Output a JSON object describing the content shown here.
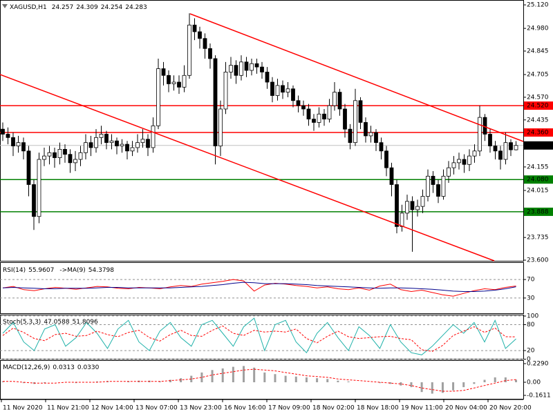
{
  "chart_data": [
    {
      "type": "candlestick",
      "symbol": "XAGUSD,H1",
      "open": [
        24.38,
        24.35,
        24.33,
        24.28,
        24.3,
        24.25,
        24.05,
        23.86,
        24.2,
        24.22,
        24.24,
        24.21,
        24.26,
        24.23,
        24.18,
        24.2,
        24.24,
        24.3,
        24.27,
        24.33,
        24.35,
        24.3,
        24.31,
        24.28,
        24.29,
        24.25,
        24.27,
        24.3,
        24.32,
        24.27,
        24.4,
        24.74,
        24.7,
        24.65,
        24.66,
        24.63,
        24.7,
        25.0,
        24.96,
        24.92,
        24.86,
        24.8,
        24.28,
        24.5,
        24.72,
        24.76,
        24.7,
        24.78,
        24.73,
        24.77,
        24.75,
        24.72,
        24.66,
        24.58,
        24.64,
        24.6,
        24.62,
        24.55,
        24.52,
        24.5,
        24.44,
        24.42,
        24.47,
        24.44,
        24.52,
        24.6,
        24.5,
        24.38,
        24.3,
        24.55,
        24.42,
        24.34,
        24.36,
        24.3,
        24.25,
        24.15,
        24.05,
        23.8,
        23.88,
        23.95,
        23.9,
        23.92,
        23.98,
        24.1,
        24.05,
        23.98,
        24.1,
        24.15,
        24.18,
        24.2,
        24.17,
        24.22,
        24.25,
        24.45,
        24.35,
        24.28,
        24.25,
        24.2,
        24.3,
        24.257
      ],
      "high": [
        24.42,
        24.39,
        24.36,
        24.34,
        24.33,
        24.28,
        24.08,
        24.24,
        24.27,
        24.28,
        24.27,
        24.3,
        24.29,
        24.26,
        24.25,
        24.28,
        24.35,
        24.34,
        24.38,
        24.4,
        24.37,
        24.35,
        24.33,
        24.32,
        24.31,
        24.31,
        24.35,
        24.38,
        24.35,
        24.45,
        24.8,
        24.78,
        24.73,
        24.7,
        24.7,
        24.76,
        25.07,
        25.04,
        24.99,
        24.95,
        24.89,
        24.82,
        24.55,
        24.78,
        24.81,
        24.79,
        24.82,
        24.81,
        24.8,
        24.8,
        24.78,
        24.75,
        24.69,
        24.68,
        24.67,
        24.66,
        24.64,
        24.58,
        24.55,
        24.53,
        24.47,
        24.51,
        24.5,
        24.56,
        24.66,
        24.62,
        24.53,
        24.41,
        24.62,
        24.57,
        24.45,
        24.4,
        24.38,
        24.33,
        24.28,
        24.18,
        24.08,
        23.93,
        23.99,
        23.98,
        23.96,
        24.02,
        24.14,
        24.13,
        24.08,
        24.14,
        24.19,
        24.22,
        24.24,
        24.23,
        24.26,
        24.29,
        24.52,
        24.47,
        24.38,
        24.31,
        24.28,
        24.36,
        24.32,
        24.309
      ],
      "low": [
        24.31,
        24.29,
        24.22,
        24.24,
        24.2,
        23.98,
        23.78,
        23.82,
        24.16,
        24.17,
        24.15,
        24.17,
        24.18,
        24.12,
        24.13,
        24.16,
        24.2,
        24.22,
        24.24,
        24.29,
        24.26,
        24.26,
        24.23,
        24.24,
        24.2,
        24.22,
        24.24,
        24.27,
        24.22,
        24.24,
        24.38,
        24.64,
        24.6,
        24.61,
        24.59,
        24.6,
        24.68,
        24.91,
        24.86,
        24.8,
        24.74,
        24.17,
        24.22,
        24.47,
        24.68,
        24.65,
        24.67,
        24.69,
        24.7,
        24.71,
        24.68,
        24.62,
        24.54,
        24.55,
        24.56,
        24.57,
        24.51,
        24.48,
        24.46,
        24.4,
        24.37,
        24.39,
        24.4,
        24.42,
        24.49,
        24.46,
        24.33,
        24.26,
        24.28,
        24.38,
        24.3,
        24.3,
        24.25,
        24.2,
        24.1,
        23.98,
        23.76,
        23.77,
        23.84,
        23.65,
        23.86,
        23.88,
        23.95,
        24.0,
        23.94,
        23.96,
        24.06,
        24.11,
        24.14,
        24.12,
        24.13,
        24.18,
        24.22,
        24.31,
        24.24,
        24.2,
        24.14,
        24.17,
        24.22,
        24.254
      ],
      "close": [
        24.35,
        24.33,
        24.28,
        24.3,
        24.25,
        24.05,
        23.86,
        24.2,
        24.22,
        24.24,
        24.21,
        24.26,
        24.23,
        24.18,
        24.2,
        24.24,
        24.3,
        24.27,
        24.33,
        24.35,
        24.3,
        24.31,
        24.28,
        24.29,
        24.25,
        24.27,
        24.3,
        24.32,
        24.27,
        24.4,
        24.74,
        24.7,
        24.65,
        24.66,
        24.63,
        24.7,
        25.0,
        24.96,
        24.92,
        24.86,
        24.8,
        24.28,
        24.5,
        24.72,
        24.76,
        24.7,
        24.78,
        24.73,
        24.77,
        24.75,
        24.72,
        24.66,
        24.58,
        24.64,
        24.6,
        24.62,
        24.55,
        24.52,
        24.5,
        24.44,
        24.42,
        24.47,
        24.44,
        24.52,
        24.6,
        24.5,
        24.38,
        24.3,
        24.55,
        24.42,
        24.34,
        24.36,
        24.3,
        24.25,
        24.15,
        24.05,
        23.8,
        23.88,
        23.95,
        23.9,
        23.92,
        23.98,
        24.1,
        24.05,
        23.98,
        24.1,
        24.15,
        24.18,
        24.2,
        24.17,
        24.22,
        24.25,
        24.45,
        24.35,
        24.28,
        24.25,
        24.2,
        24.3,
        24.257,
        24.283
      ],
      "up_color": "#ffffff",
      "down_color": "#000000",
      "ylim": [
        23.596,
        25.149
      ],
      "yticks": [
        {
          "value": 25.12,
          "label": "25.120"
        },
        {
          "value": 24.98,
          "label": "24.980"
        },
        {
          "value": 24.845,
          "label": "24.845"
        },
        {
          "value": 24.705,
          "label": "24.705"
        },
        {
          "value": 24.57,
          "label": "24.570"
        },
        {
          "value": 24.435,
          "label": "24.435"
        },
        {
          "value": 24.155,
          "label": "24.155"
        },
        {
          "value": 24.015,
          "label": "24.015"
        },
        {
          "value": 23.735,
          "label": "23.735"
        },
        {
          "value": 23.6,
          "label": "23.600"
        }
      ],
      "levels": [
        {
          "value": 24.52,
          "label": "24.520",
          "color": "#ff0000",
          "box_color": "#ff0000"
        },
        {
          "value": 24.36,
          "label": "24.360",
          "color": "#ff0000",
          "box_color": "#ff0000"
        },
        {
          "value": 24.283,
          "color": "#c0c0c0",
          "box_color": "#000000"
        },
        {
          "value": 24.08,
          "label": "24.080",
          "color": "#008000",
          "box_color": "#008000"
        },
        {
          "value": 23.888,
          "label": "23.888",
          "color": "#008000",
          "box_color": "#008000"
        }
      ],
      "x_labels": [
        "11 Nov 2020",
        "11 Nov 21:00",
        "12 Nov 14:00",
        "13 Nov 07:00",
        "13 Nov 23:00",
        "16 Nov 16:00",
        "17 Nov 09:00",
        "18 Nov 02:00",
        "18 Nov 18:00",
        "19 Nov 11:00",
        "20 Nov 04:00",
        "20 Nov 20:00"
      ]
    },
    {
      "type": "line",
      "title": "RSI(14)",
      "ylim": [
        0,
        100
      ],
      "yticks": [
        70,
        30
      ],
      "grid": true,
      "series": [
        {
          "color": "#ff0000",
          "values": [
            52,
            55,
            48,
            46,
            50,
            53,
            51,
            49,
            52,
            55,
            54,
            51,
            50,
            53,
            52,
            50,
            54,
            57,
            55,
            60,
            63,
            66,
            70,
            67,
            45,
            58,
            62,
            60,
            57,
            55,
            52,
            54,
            50,
            48,
            52,
            47,
            56,
            60,
            48,
            44,
            47,
            42,
            37,
            34,
            40,
            46,
            50,
            48,
            53,
            55.9607
          ]
        },
        {
          "name": "->MA(9)",
          "color": "#00008b",
          "values": [
            52,
            53,
            52,
            51,
            50,
            50,
            51,
            51,
            51,
            52,
            53,
            53,
            52,
            52,
            52,
            52,
            52,
            53,
            54,
            55,
            57,
            59,
            62,
            64,
            63,
            61,
            61,
            61,
            60,
            59,
            57,
            56,
            55,
            54,
            53,
            52,
            51,
            52,
            52,
            51,
            50,
            49,
            47,
            45,
            44,
            44,
            45,
            47,
            50,
            54.3798
          ]
        }
      ]
    },
    {
      "type": "line",
      "title": "Stoch(5,3,3)",
      "ylim": [
        0,
        100
      ],
      "yticks": [
        100,
        80,
        20,
        0
      ],
      "grid": true,
      "series": [
        {
          "color": "#20b2aa",
          "values": [
            60,
            85,
            40,
            20,
            70,
            80,
            30,
            50,
            85,
            60,
            25,
            70,
            90,
            40,
            20,
            65,
            85,
            50,
            30,
            80,
            90,
            60,
            30,
            75,
            95,
            20,
            80,
            90,
            40,
            15,
            60,
            85,
            50,
            20,
            75,
            55,
            25,
            80,
            40,
            15,
            10,
            30,
            55,
            80,
            60,
            85,
            40,
            90,
            25,
            47.0588
          ]
        },
        {
          "color": "#ff0000",
          "dashed": true,
          "values": [
            55,
            72,
            62,
            48,
            43,
            57,
            60,
            53,
            55,
            65,
            57,
            52,
            62,
            67,
            50,
            42,
            57,
            67,
            55,
            53,
            67,
            77,
            60,
            55,
            67,
            63,
            65,
            63,
            70,
            48,
            38,
            53,
            65,
            52,
            48,
            50,
            52,
            53,
            48,
            45,
            22,
            18,
            32,
            55,
            65,
            75,
            62,
            72,
            52,
            51.8096
          ]
        }
      ]
    },
    {
      "type": "line",
      "title": "MACD(12,26,9)",
      "ylim": [
        -0.1611,
        0.229
      ],
      "yticks": [
        {
          "value": 0.229,
          "label": "0.2290"
        },
        {
          "value": 0,
          "label": "0.00"
        },
        -0.1611
      ],
      "grid": false,
      "series": [
        {
          "color": "#a0a0a0",
          "style": "histogram",
          "values": [
            0.01,
            0.0,
            -0.01,
            -0.02,
            -0.01,
            0.0,
            0.0,
            -0.01,
            0.0,
            0.01,
            0.01,
            0.0,
            0.01,
            0.02,
            0.02,
            0.01,
            0.03,
            0.05,
            0.08,
            0.12,
            0.15,
            0.17,
            0.19,
            0.2,
            0.18,
            0.12,
            0.1,
            0.08,
            0.07,
            0.06,
            0.05,
            0.04,
            0.02,
            0.01,
            0.0,
            0.0,
            -0.01,
            -0.02,
            -0.04,
            -0.06,
            -0.12,
            -0.14,
            -0.13,
            -0.1,
            -0.06,
            -0.02,
            0.03,
            0.06,
            0.06,
            0.0313
          ]
        },
        {
          "color": "#ff0000",
          "dashed": true,
          "values": [
            0.01,
            0.01,
            0.0,
            -0.01,
            -0.01,
            -0.01,
            0.0,
            0.0,
            0.0,
            0.0,
            0.01,
            0.01,
            0.01,
            0.01,
            0.01,
            0.01,
            0.02,
            0.03,
            0.04,
            0.06,
            0.09,
            0.11,
            0.13,
            0.15,
            0.16,
            0.15,
            0.14,
            0.12,
            0.1,
            0.08,
            0.07,
            0.06,
            0.04,
            0.03,
            0.02,
            0.01,
            0.0,
            -0.01,
            -0.02,
            -0.04,
            -0.07,
            -0.09,
            -0.11,
            -0.11,
            -0.1,
            -0.07,
            -0.04,
            -0.01,
            0.02,
            0.033
          ],
          "value_labels": [
            null,
            null,
            null,
            null,
            null,
            null,
            null,
            null,
            null,
            null,
            null,
            null,
            null,
            null,
            null,
            null,
            null,
            null,
            null,
            null,
            null,
            null,
            null,
            null,
            null,
            null,
            null,
            null,
            null,
            null,
            null,
            null,
            null,
            null,
            null,
            null,
            null,
            null,
            null,
            null,
            null,
            null,
            null,
            null,
            null,
            null,
            null,
            null,
            null,
            "0.0330"
          ]
        }
      ]
    }
  ]
}
